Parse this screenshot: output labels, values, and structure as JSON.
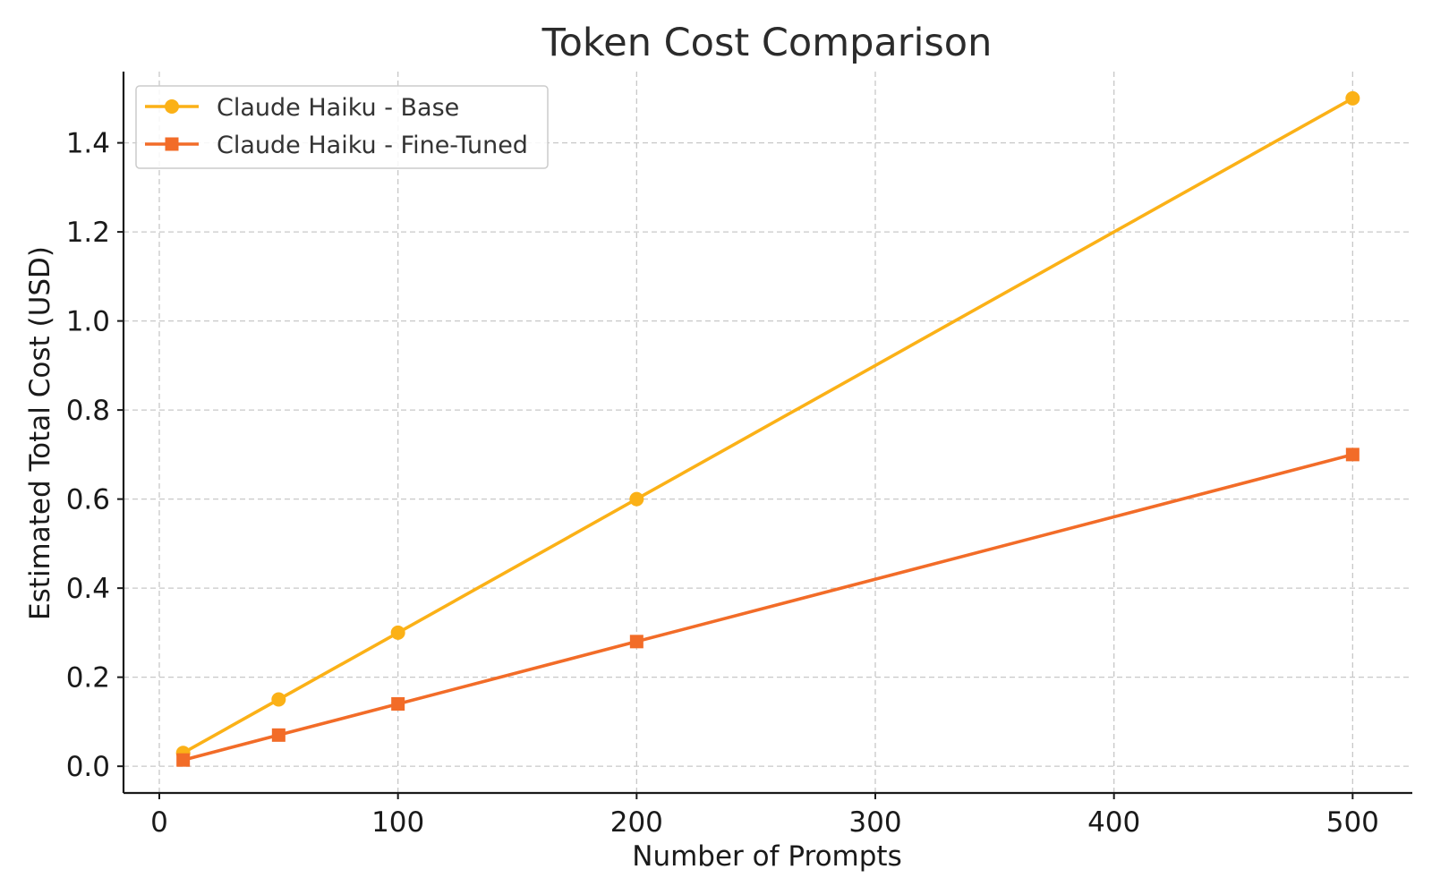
{
  "chart_data": {
    "type": "line",
    "title": "Token Cost Comparison",
    "xlabel": "Number of Prompts",
    "ylabel": "Estimated Total Cost (USD)",
    "xlim": [
      -15,
      525
    ],
    "ylim": [
      -0.06,
      1.56
    ],
    "x_ticks": [
      0,
      100,
      200,
      300,
      400,
      500
    ],
    "x_tick_labels": [
      "0",
      "100",
      "200",
      "300",
      "400",
      "500"
    ],
    "y_ticks": [
      0.0,
      0.2,
      0.4,
      0.6,
      0.8,
      1.0,
      1.2,
      1.4
    ],
    "y_tick_labels": [
      "0.0",
      "0.2",
      "0.4",
      "0.6",
      "0.8",
      "1.0",
      "1.2",
      "1.4"
    ],
    "grid": true,
    "legend_position": "top-left",
    "x": [
      10,
      50,
      100,
      200,
      500
    ],
    "series": [
      {
        "name": "Claude Haiku - Base",
        "values": [
          0.03,
          0.15,
          0.3,
          0.6,
          1.5
        ],
        "color": "#FBB117",
        "marker": "circle"
      },
      {
        "name": "Claude Haiku - Fine-Tuned",
        "values": [
          0.014,
          0.07,
          0.14,
          0.28,
          0.7
        ],
        "color": "#F26C28",
        "marker": "square"
      }
    ]
  }
}
